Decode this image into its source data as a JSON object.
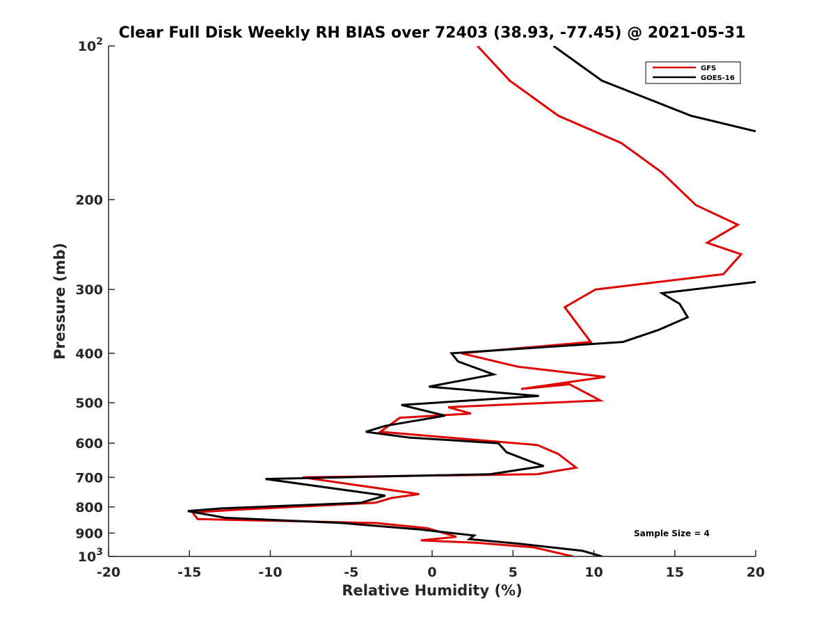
{
  "chart_data": {
    "type": "line",
    "title": "Clear Full Disk Weekly RH BIAS over 72403 (38.93, -77.45) @ 2021-05-31",
    "xlabel": "Relative Humidity (%)",
    "ylabel": "Pressure (mb)",
    "xlim": [
      -20,
      20
    ],
    "ylim": [
      100,
      1000
    ],
    "y_scale": "log",
    "y_reversed": true,
    "grid": false,
    "legend_position": "top-right",
    "x_ticks": [
      "-20",
      "-15",
      "-10",
      "-5",
      "0",
      "5",
      "10",
      "15",
      "20"
    ],
    "y_ticks": [
      {
        "value": 100,
        "base": "10",
        "exp": "2"
      },
      {
        "value": 200,
        "base": "200",
        "exp": ""
      },
      {
        "value": 300,
        "base": "300",
        "exp": ""
      },
      {
        "value": 400,
        "base": "400",
        "exp": ""
      },
      {
        "value": 500,
        "base": "500",
        "exp": ""
      },
      {
        "value": 600,
        "base": "600",
        "exp": ""
      },
      {
        "value": 700,
        "base": "700",
        "exp": ""
      },
      {
        "value": 800,
        "base": "800",
        "exp": ""
      },
      {
        "value": 900,
        "base": "900",
        "exp": ""
      },
      {
        "value": 1000,
        "base": "10",
        "exp": "3"
      }
    ],
    "annotation": "Sample Size = 4",
    "series": [
      {
        "name": "GFS",
        "color": "#e00000",
        "points": [
          [
            2.8,
            100
          ],
          [
            4.8,
            117
          ],
          [
            7.8,
            137
          ],
          [
            11.7,
            155
          ],
          [
            14.2,
            177
          ],
          [
            16.3,
            205
          ],
          [
            18.9,
            224
          ],
          [
            17.0,
            243
          ],
          [
            19.1,
            256
          ],
          [
            18.0,
            280
          ],
          [
            10.1,
            300
          ],
          [
            8.2,
            325
          ],
          [
            9.8,
            380
          ],
          [
            1.8,
            400
          ],
          [
            5.3,
            425
          ],
          [
            10.7,
            445
          ],
          [
            5.5,
            470
          ],
          [
            8.5,
            460
          ],
          [
            10.4,
            495
          ],
          [
            1.0,
            510
          ],
          [
            2.4,
            525
          ],
          [
            -2.0,
            535
          ],
          [
            -3.2,
            570
          ],
          [
            6.5,
            605
          ],
          [
            7.8,
            630
          ],
          [
            8.9,
            670
          ],
          [
            6.5,
            690
          ],
          [
            -8.0,
            700
          ],
          [
            -0.8,
            755
          ],
          [
            -2.5,
            768
          ],
          [
            -3.5,
            785
          ],
          [
            -12.0,
            810
          ],
          [
            -14.8,
            820
          ],
          [
            -14.5,
            845
          ],
          [
            -3.5,
            860
          ],
          [
            -0.3,
            880
          ],
          [
            1.5,
            915
          ],
          [
            -0.7,
            930
          ],
          [
            2.7,
            940
          ],
          [
            6.3,
            960
          ],
          [
            8.7,
            1000
          ]
        ]
      },
      {
        "name": "GOES-16",
        "color": "#000000",
        "points": [
          [
            7.5,
            100
          ],
          [
            10.5,
            117
          ],
          [
            16.0,
            137
          ],
          [
            20.0,
            147
          ],
          [
            null,
            null
          ],
          [
            20.0,
            290
          ],
          [
            14.2,
            305
          ],
          [
            15.3,
            320
          ],
          [
            15.8,
            340
          ],
          [
            14.0,
            360
          ],
          [
            11.8,
            380
          ],
          [
            1.2,
            400
          ],
          [
            1.6,
            415
          ],
          [
            3.8,
            440
          ],
          [
            -0.2,
            465
          ],
          [
            6.6,
            485
          ],
          [
            -1.9,
            505
          ],
          [
            0.8,
            530
          ],
          [
            -2.9,
            555
          ],
          [
            -4.1,
            570
          ],
          [
            -1.4,
            585
          ],
          [
            4.1,
            600
          ],
          [
            4.6,
            625
          ],
          [
            6.0,
            650
          ],
          [
            6.9,
            665
          ],
          [
            3.6,
            690
          ],
          [
            -10.3,
            705
          ],
          [
            -2.9,
            760
          ],
          [
            -4.4,
            785
          ],
          [
            -13.0,
            805
          ],
          [
            -15.1,
            815
          ],
          [
            -12.8,
            840
          ],
          [
            -5.6,
            860
          ],
          [
            -0.8,
            885
          ],
          [
            2.6,
            910
          ],
          [
            2.3,
            925
          ],
          [
            5.5,
            945
          ],
          [
            9.3,
            975
          ],
          [
            10.5,
            1000
          ]
        ]
      }
    ]
  }
}
